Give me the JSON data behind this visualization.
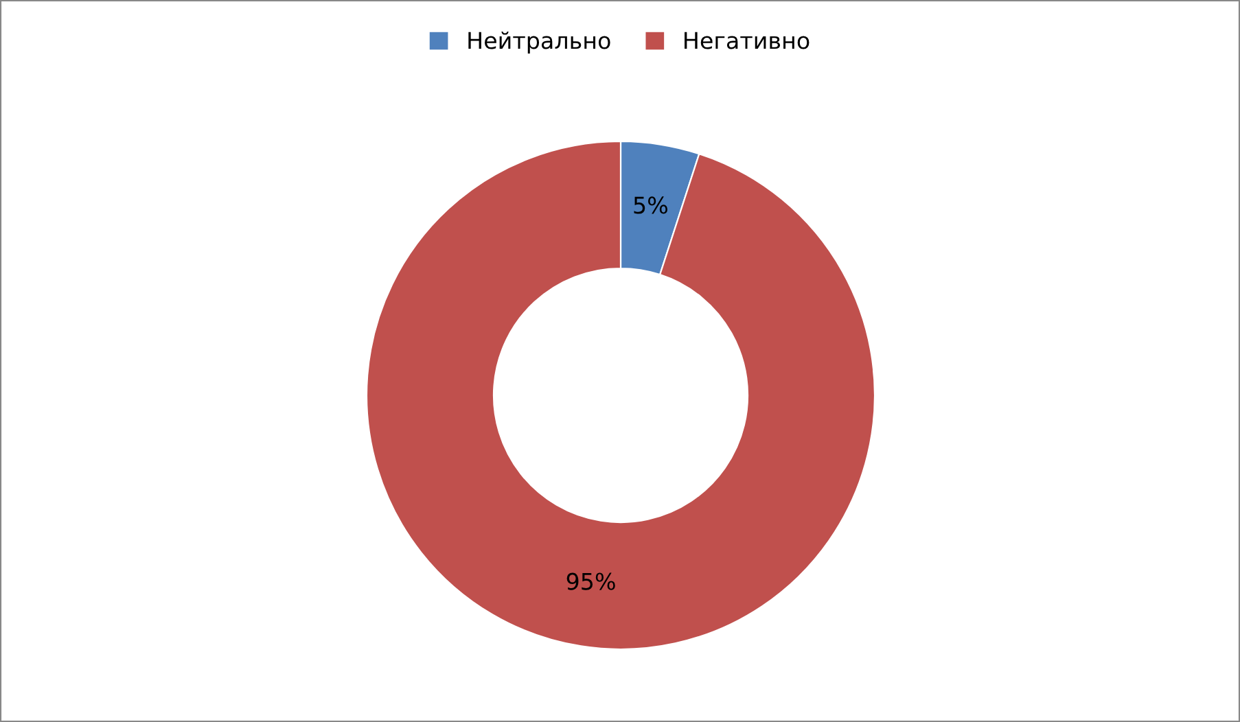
{
  "chart_data": {
    "type": "donut",
    "categories": [
      "Нейтрально",
      "Негативно"
    ],
    "values": [
      5,
      95
    ],
    "colors": [
      "#4f81bd",
      "#c0504d"
    ],
    "value_labels": [
      "5%",
      "95%"
    ],
    "legend": "top"
  }
}
